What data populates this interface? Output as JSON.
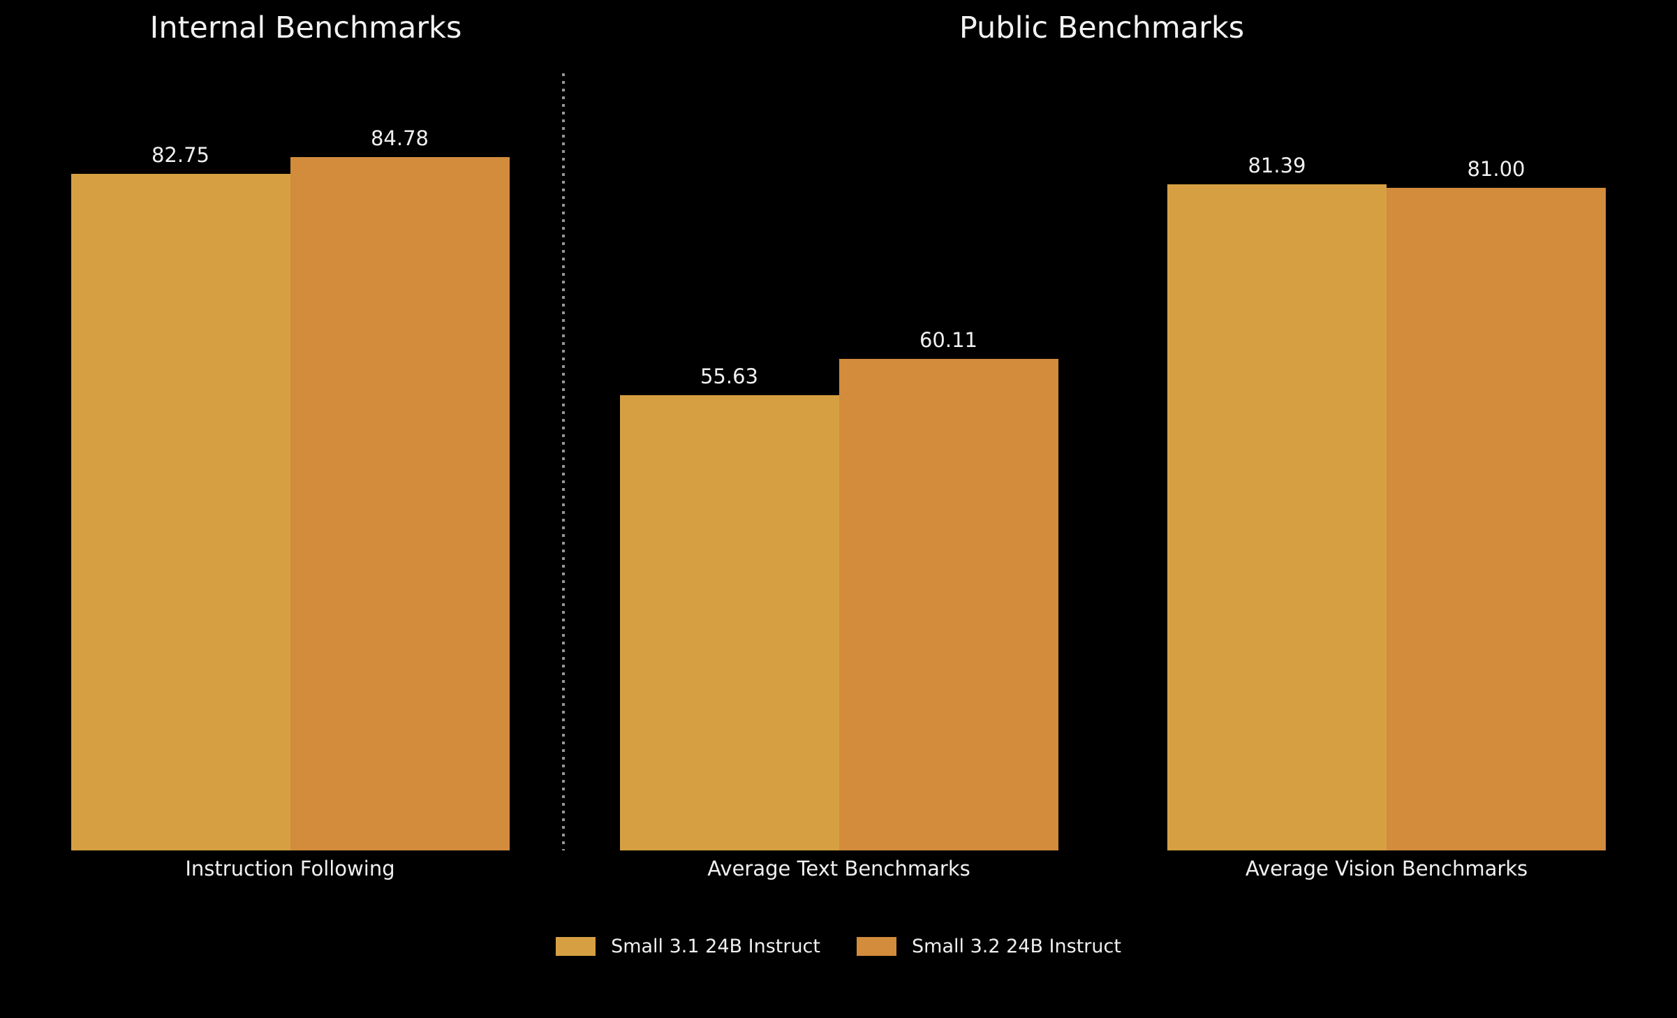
{
  "chart_data": {
    "type": "bar",
    "background": "#000000",
    "text_color": "#f0f0f0",
    "grid": false,
    "legend_position": "bottom",
    "ylim": [
      0,
      95
    ],
    "panels": [
      {
        "title": "Internal Benchmarks",
        "categories": [
          "Instruction Following"
        ]
      },
      {
        "title": "Public Benchmarks",
        "categories": [
          "Average Text Benchmarks",
          "Average Vision Benchmarks"
        ]
      }
    ],
    "categories": [
      "Instruction Following",
      "Average Text Benchmarks",
      "Average Vision Benchmarks"
    ],
    "series": [
      {
        "name": "Small 3.1 24B Instruct",
        "color": "#D6A042",
        "values": [
          82.75,
          55.63,
          81.39
        ]
      },
      {
        "name": "Small 3.2 24B Instruct",
        "color": "#D28C3C",
        "values": [
          84.78,
          60.11,
          81.0
        ]
      }
    ],
    "value_label_decimals": 2,
    "separator": {
      "color": "#969696",
      "style": "dotted"
    }
  }
}
